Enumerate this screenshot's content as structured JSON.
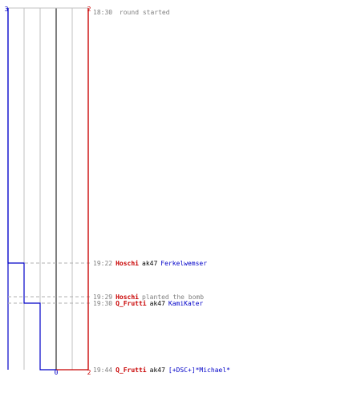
{
  "colors": {
    "blue_team": "#0000c8",
    "red_team": "#c80000",
    "grid": "#c0c0c0",
    "mid_line": "#808080",
    "event_text": "#808080",
    "dash": "#b0b0b0",
    "black": "#000000"
  },
  "scores": {
    "blue_top": "3",
    "red_top": "2",
    "blue_bottom": "0",
    "red_bottom": "2"
  },
  "round_start": {
    "time": "18:30",
    "text": "round started"
  },
  "events": [
    {
      "time": "19:22",
      "type": "kill",
      "killer": "Hoschi",
      "killer_team": "red",
      "weapon": "ak47",
      "victim": "Ferkelwemser",
      "victim_team": "blue",
      "blue_alive_after": 2
    },
    {
      "time": "19:29",
      "type": "bomb",
      "player": "Hoschi",
      "player_team": "red",
      "text": "planted the bomb",
      "blue_alive_after": 2
    },
    {
      "time": "19:30",
      "type": "kill",
      "killer": "Q_Frutti",
      "killer_team": "red",
      "weapon": "ak47",
      "victim": "KamiKater",
      "victim_team": "blue",
      "blue_alive_after": 1
    },
    {
      "time": "19:44",
      "type": "kill",
      "killer": "Q_Frutti",
      "killer_team": "red",
      "weapon": "ak47",
      "victim": "[+DSC+]*Michael*",
      "victim_team": "blue",
      "blue_alive_after": 0
    }
  ]
}
